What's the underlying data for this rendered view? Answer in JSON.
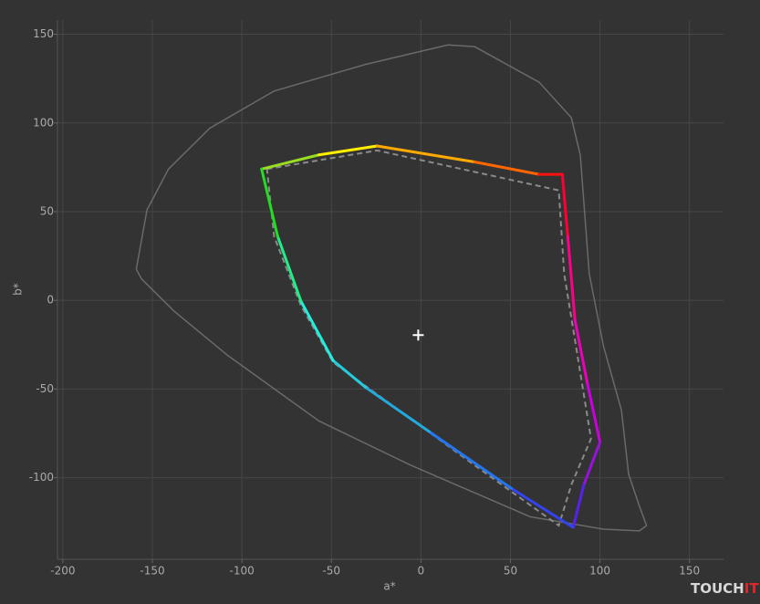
{
  "chart_data": {
    "type": "line",
    "xlabel": "a*",
    "ylabel": "b*",
    "xlim": [
      -203,
      169
    ],
    "ylim": [
      -146,
      158
    ],
    "xticks": [
      -200,
      -150,
      -100,
      -50,
      0,
      50,
      100,
      150
    ],
    "yticks": [
      -100,
      -50,
      0,
      50,
      100,
      150
    ],
    "grid": true,
    "series": [
      {
        "color": "#6a6a6a",
        "dashed": false,
        "x": [
          -159,
          -153,
          -141,
          -118,
          -82,
          -31,
          15,
          30,
          66,
          84,
          89,
          94,
          102,
          112,
          116,
          122,
          126,
          122,
          102,
          61,
          -5.6,
          -57,
          -108,
          -138,
          -156,
          -159
        ],
        "y": [
          17.5,
          51,
          74,
          97,
          118,
          133,
          144,
          143,
          123,
          103,
          82,
          15,
          -26,
          -62,
          -98,
          -116,
          -127,
          -130,
          -129,
          -122,
          -93,
          -68,
          -31,
          -6,
          12,
          17.5
        ]
      },
      {
        "color": "#8a8a8a",
        "dashed": true,
        "x": [
          -86,
          -24.5,
          77,
          80,
          90,
          95,
          84,
          77,
          30,
          -49,
          -67,
          -82,
          -86
        ],
        "y": [
          74,
          84.5,
          62,
          15,
          -47,
          -78,
          -104,
          -127,
          -93,
          -35,
          -3,
          36,
          74
        ]
      },
      {
        "colors": [
          "#22dd22",
          "#99dd22",
          "#ffee00",
          "#ffaa00",
          "#ff6600",
          "#ff1111",
          "#ff0033",
          "#ff0088",
          "#ee00bb",
          "#cc00dd",
          "#9911dd",
          "#5522ee",
          "#3344ee",
          "#2277ee",
          "#22aadd",
          "#22ccdd",
          "#22eedd",
          "#22ee88",
          "#22dd22"
        ],
        "dashed": false,
        "x": [
          -89,
          -57,
          -24.5,
          30,
          66,
          79,
          82,
          86,
          93,
          100,
          91,
          85,
          50.5,
          4.6,
          -31,
          -49,
          -67,
          -80,
          -89
        ],
        "y": [
          74,
          82,
          87,
          78,
          71,
          71,
          36,
          -11,
          -47,
          -80,
          -104,
          -128,
          -106,
          -74,
          -49,
          -34,
          -0.5,
          36,
          74
        ]
      }
    ],
    "markers": [
      {
        "x": -1.5,
        "y": -19.6,
        "color": "#ffffff"
      }
    ]
  },
  "watermark": {
    "text": "TOUCH",
    "accent": "IT"
  }
}
